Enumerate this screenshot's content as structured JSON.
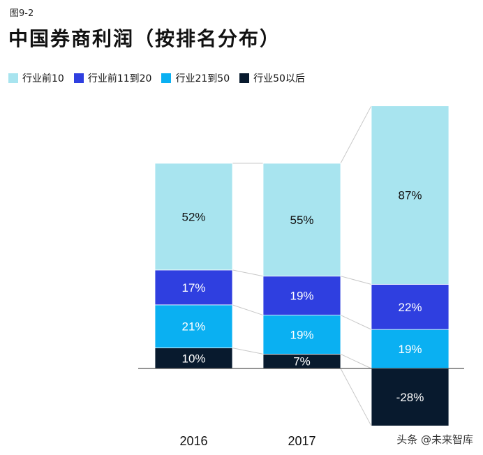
{
  "figure_label": "图9-2",
  "title": "中国券商利润（按排名分布）",
  "watermark": "头条 @未来智库",
  "chart_data": {
    "type": "bar",
    "stacked": true,
    "categories": [
      "2016",
      "2017",
      ""
    ],
    "series": [
      {
        "name": "行业前10",
        "color": "#a8e4ef",
        "text_color": "#111111",
        "values": [
          52,
          55,
          87
        ]
      },
      {
        "name": "行业前11到20",
        "color": "#2f3fe0",
        "text_color": "#ffffff",
        "values": [
          17,
          19,
          22
        ]
      },
      {
        "name": "行业21到50",
        "color": "#0ab0f2",
        "text_color": "#ffffff",
        "values": [
          21,
          19,
          19
        ]
      },
      {
        "name": "行业50以后",
        "color": "#081a2e",
        "text_color": "#ffffff",
        "values": [
          10,
          7,
          -28
        ]
      }
    ],
    "value_suffix": "%",
    "ylim": [
      -28,
      130
    ]
  }
}
